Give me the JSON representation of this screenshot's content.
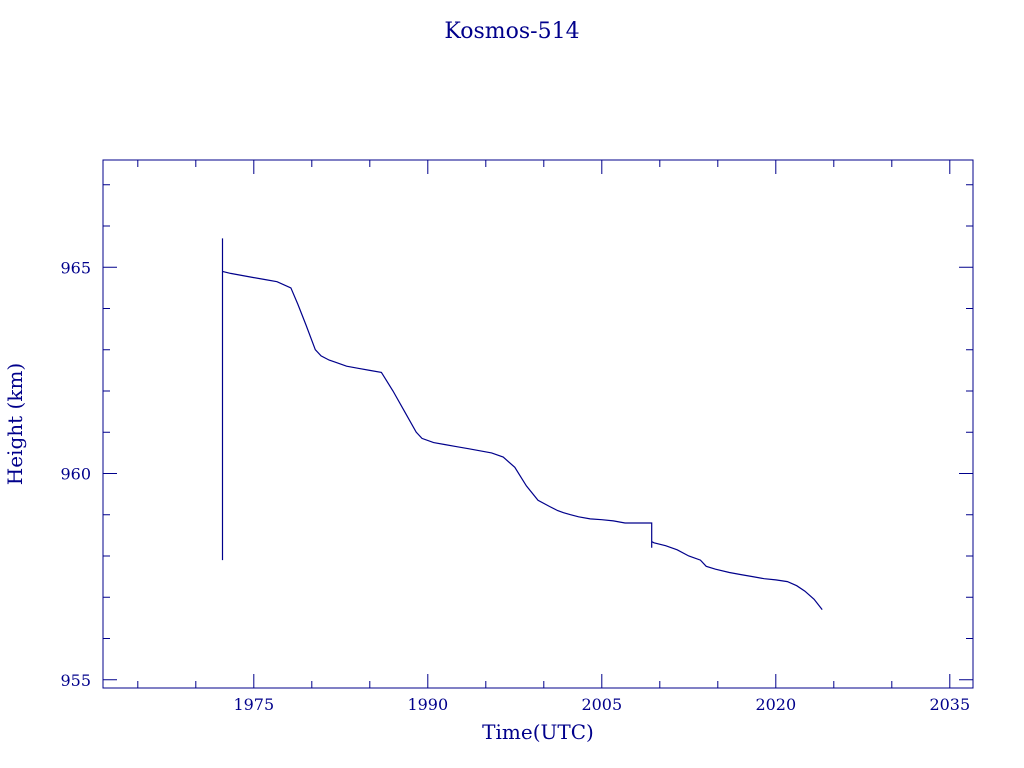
{
  "chart_data": {
    "type": "line",
    "title": "Kosmos-514",
    "xlabel": "Time(UTC)",
    "ylabel": "Height (km)",
    "xlim": [
      1962,
      2037
    ],
    "ylim": [
      954.8,
      967.6
    ],
    "x_major_ticks": [
      1975,
      1990,
      2005,
      2020,
      2035
    ],
    "x_minor_ticks": [
      1965,
      1970,
      1980,
      1985,
      1995,
      2000,
      2010,
      2015,
      2025,
      2030
    ],
    "y_major_ticks": [
      955,
      960,
      965
    ],
    "y_minor_ticks": [
      956,
      957,
      958,
      959,
      961,
      962,
      963,
      964,
      966,
      967
    ],
    "grid": false,
    "color": "#00008b",
    "series": [
      {
        "x": [
          1972.3,
          1972.3,
          1972.3,
          1972.3,
          1973,
          1974,
          1975,
          1976,
          1977,
          1978.2,
          1978.8,
          1979.5,
          1980.3,
          1980.8,
          1981.5,
          1982,
          1983,
          1984,
          1985,
          1986,
          1987,
          1988,
          1989,
          1989.5,
          1990.5,
          1991.5,
          1992.5,
          1993.5,
          1994.5,
          1995.5,
          1996.5,
          1997.5,
          1998.5,
          1999.5,
          2000.5,
          2001.2,
          2001.7,
          2002.3,
          2003,
          2004,
          2005,
          2006,
          2007,
          2008,
          2009.3,
          2009.3,
          2009.3,
          2009.5,
          2010.5,
          2011.5,
          2012.5,
          2013.5,
          2014,
          2014.8,
          2016,
          2017,
          2018,
          2019,
          2020,
          2021,
          2021.8,
          2022.5,
          2023.3,
          2024
        ],
        "y": [
          957.9,
          965.7,
          964.9,
          964.9,
          964.85,
          964.8,
          964.75,
          964.7,
          964.65,
          964.5,
          964.1,
          963.6,
          963.0,
          962.85,
          962.75,
          962.7,
          962.6,
          962.55,
          962.5,
          962.45,
          962.0,
          961.5,
          961.0,
          960.85,
          960.75,
          960.7,
          960.65,
          960.6,
          960.55,
          960.5,
          960.4,
          960.15,
          959.7,
          959.35,
          959.2,
          959.1,
          959.05,
          959.0,
          958.95,
          958.9,
          958.88,
          958.85,
          958.8,
          958.8,
          958.8,
          958.2,
          958.35,
          958.32,
          958.25,
          958.15,
          958.0,
          957.9,
          957.75,
          957.68,
          957.6,
          957.55,
          957.5,
          957.45,
          957.42,
          957.38,
          957.28,
          957.15,
          956.95,
          956.7
        ]
      }
    ]
  }
}
